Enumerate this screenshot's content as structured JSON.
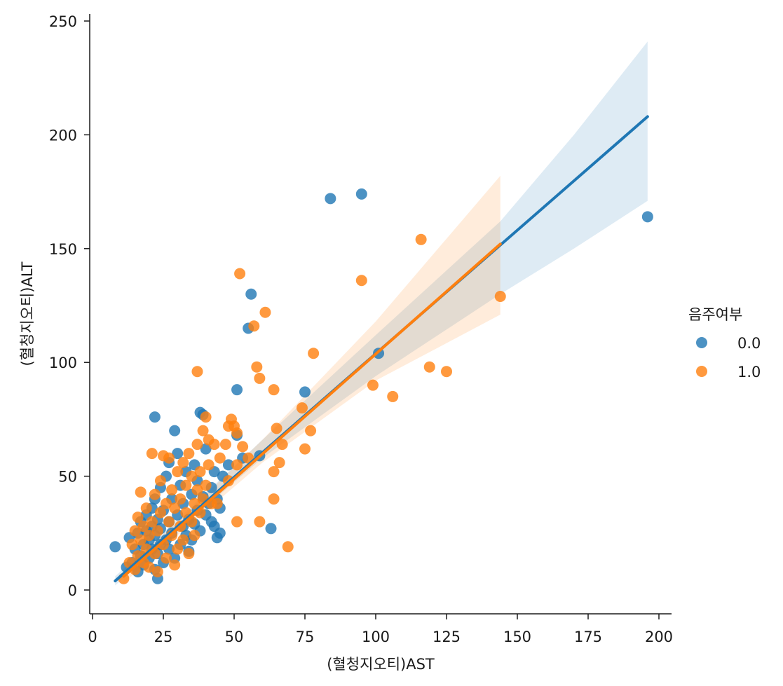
{
  "chart_data": {
    "type": "scatter",
    "title": "",
    "xlabel": "(혈청지오티)AST",
    "ylabel": "(혈청지오티)ALT",
    "xlim": [
      -1,
      205
    ],
    "ylim": [
      -10,
      253
    ],
    "xticks": [
      0,
      25,
      50,
      75,
      100,
      125,
      150,
      175,
      200
    ],
    "yticks": [
      0,
      50,
      100,
      150,
      200,
      250
    ],
    "grid": false,
    "legend": {
      "title": "음주여부",
      "placement": "right"
    },
    "series": [
      {
        "name": "0.0",
        "color": "#1f77b4",
        "points": [
          [
            8,
            19
          ],
          [
            12,
            10
          ],
          [
            13,
            23
          ],
          [
            14,
            12
          ],
          [
            15,
            18
          ],
          [
            16,
            8
          ],
          [
            16,
            25
          ],
          [
            17,
            15
          ],
          [
            17,
            30
          ],
          [
            18,
            11
          ],
          [
            18,
            20
          ],
          [
            19,
            26
          ],
          [
            19,
            33
          ],
          [
            20,
            14
          ],
          [
            20,
            22
          ],
          [
            21,
            18
          ],
          [
            21,
            28
          ],
          [
            21,
            36
          ],
          [
            22,
            9
          ],
          [
            22,
            24
          ],
          [
            22,
            40
          ],
          [
            22,
            76
          ],
          [
            23,
            5
          ],
          [
            23,
            16
          ],
          [
            23,
            31
          ],
          [
            24,
            20
          ],
          [
            24,
            27
          ],
          [
            24,
            45
          ],
          [
            25,
            12
          ],
          [
            25,
            35
          ],
          [
            26,
            22
          ],
          [
            26,
            50
          ],
          [
            27,
            18
          ],
          [
            27,
            30
          ],
          [
            27,
            56
          ],
          [
            28,
            25
          ],
          [
            28,
            40
          ],
          [
            29,
            70
          ],
          [
            29,
            14
          ],
          [
            30,
            33
          ],
          [
            30,
            60
          ],
          [
            31,
            20
          ],
          [
            31,
            46
          ],
          [
            32,
            28
          ],
          [
            32,
            38
          ],
          [
            33,
            24
          ],
          [
            33,
            52
          ],
          [
            34,
            17
          ],
          [
            34,
            31
          ],
          [
            35,
            42
          ],
          [
            35,
            22
          ],
          [
            36,
            29
          ],
          [
            36,
            55
          ],
          [
            37,
            35
          ],
          [
            37,
            48
          ],
          [
            38,
            26
          ],
          [
            38,
            78
          ],
          [
            39,
            41
          ],
          [
            39,
            77
          ],
          [
            40,
            33
          ],
          [
            40,
            62
          ],
          [
            41,
            38
          ],
          [
            42,
            30
          ],
          [
            42,
            45
          ],
          [
            43,
            28
          ],
          [
            43,
            52
          ],
          [
            44,
            23
          ],
          [
            44,
            40
          ],
          [
            45,
            36
          ],
          [
            45,
            25
          ],
          [
            46,
            50
          ],
          [
            48,
            55
          ],
          [
            51,
            88
          ],
          [
            51,
            68
          ],
          [
            53,
            58
          ],
          [
            55,
            115
          ],
          [
            56,
            130
          ],
          [
            59,
            59
          ],
          [
            63,
            27
          ],
          [
            75,
            87
          ],
          [
            84,
            172
          ],
          [
            95,
            174
          ],
          [
            101,
            104
          ],
          [
            196,
            164
          ]
        ],
        "fit": {
          "x": [
            8,
            196
          ],
          "y": [
            4,
            208
          ]
        },
        "ci": {
          "x": [
            8,
            30,
            60,
            100,
            144,
            170,
            196
          ],
          "lower": [
            2,
            26,
            58,
            94,
            130,
            150,
            171
          ],
          "upper": [
            6,
            31,
            66,
            112,
            162,
            200,
            241
          ]
        }
      },
      {
        "name": "1.0",
        "color": "#ff7f0e",
        "points": [
          [
            11,
            5
          ],
          [
            13,
            12
          ],
          [
            14,
            20
          ],
          [
            15,
            9
          ],
          [
            15,
            26
          ],
          [
            16,
            15
          ],
          [
            16,
            32
          ],
          [
            17,
            22
          ],
          [
            17,
            43
          ],
          [
            18,
            12
          ],
          [
            18,
            28
          ],
          [
            19,
            18
          ],
          [
            19,
            36
          ],
          [
            20,
            24
          ],
          [
            20,
            10
          ],
          [
            21,
            60
          ],
          [
            21,
            30
          ],
          [
            22,
            16
          ],
          [
            22,
            42
          ],
          [
            23,
            26
          ],
          [
            23,
            8
          ],
          [
            24,
            34
          ],
          [
            24,
            48
          ],
          [
            25,
            20
          ],
          [
            25,
            59
          ],
          [
            26,
            38
          ],
          [
            26,
            14
          ],
          [
            27,
            30
          ],
          [
            27,
            58
          ],
          [
            28,
            24
          ],
          [
            28,
            44
          ],
          [
            29,
            11
          ],
          [
            29,
            36
          ],
          [
            30,
            52
          ],
          [
            30,
            18
          ],
          [
            31,
            28
          ],
          [
            31,
            40
          ],
          [
            32,
            56
          ],
          [
            32,
            22
          ],
          [
            33,
            34
          ],
          [
            33,
            46
          ],
          [
            34,
            16
          ],
          [
            34,
            60
          ],
          [
            35,
            30
          ],
          [
            35,
            50
          ],
          [
            36,
            38
          ],
          [
            36,
            24
          ],
          [
            37,
            64
          ],
          [
            37,
            96
          ],
          [
            37,
            44
          ],
          [
            38,
            52
          ],
          [
            38,
            34
          ],
          [
            39,
            70
          ],
          [
            39,
            40
          ],
          [
            40,
            46
          ],
          [
            40,
            76
          ],
          [
            41,
            55
          ],
          [
            41,
            66
          ],
          [
            42,
            38
          ],
          [
            43,
            64
          ],
          [
            44,
            38
          ],
          [
            45,
            58
          ],
          [
            47,
            64
          ],
          [
            48,
            48
          ],
          [
            48,
            72
          ],
          [
            49,
            75
          ],
          [
            50,
            72
          ],
          [
            51,
            55
          ],
          [
            51,
            30
          ],
          [
            51,
            69
          ],
          [
            52,
            139
          ],
          [
            53,
            63
          ],
          [
            55,
            58
          ],
          [
            57,
            116
          ],
          [
            58,
            98
          ],
          [
            59,
            93
          ],
          [
            59,
            30
          ],
          [
            61,
            122
          ],
          [
            64,
            88
          ],
          [
            64,
            52
          ],
          [
            64,
            40
          ],
          [
            65,
            71
          ],
          [
            66,
            56
          ],
          [
            67,
            64
          ],
          [
            69,
            19
          ],
          [
            74,
            80
          ],
          [
            75,
            62
          ],
          [
            77,
            70
          ],
          [
            78,
            104
          ],
          [
            95,
            136
          ],
          [
            99,
            90
          ],
          [
            106,
            85
          ],
          [
            116,
            154
          ],
          [
            119,
            98
          ],
          [
            125,
            96
          ],
          [
            144,
            129
          ]
        ],
        "fit": {
          "x": [
            11,
            144
          ],
          "y": [
            6,
            152
          ]
        },
        "ci": {
          "x": [
            11,
            30,
            60,
            100,
            144
          ],
          "lower": [
            3,
            24,
            56,
            92,
            121
          ],
          "upper": [
            9,
            30,
            66,
            118,
            182
          ]
        }
      }
    ]
  }
}
